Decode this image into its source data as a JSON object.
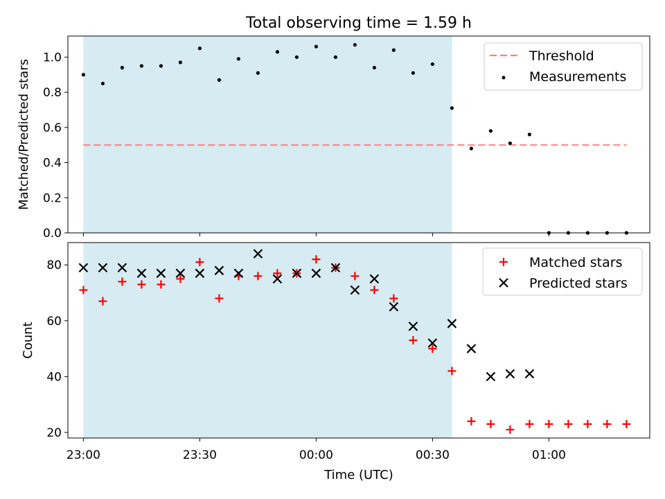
{
  "chart_data": {
    "title": "Total observing time = 1.59 h",
    "xlabel": "Time (UTC)",
    "x_unit": "HH:MM UTC",
    "x_range": [
      "22:56",
      "01:26"
    ],
    "x_ticks": [
      "23:00",
      "23:30",
      "00:00",
      "00:30",
      "01:00"
    ],
    "observing_window": [
      "23:00",
      "00:35"
    ],
    "observing_window_color": "#add8e6",
    "panels": [
      {
        "type": "scatter",
        "ylabel": "Matched/Predicted stars",
        "ylim": [
          0.0,
          1.12
        ],
        "yticks": [
          "0.0",
          "0.2",
          "0.4",
          "0.6",
          "0.8",
          "1.0"
        ],
        "legend_location": "upper right",
        "threshold": {
          "name": "Threshold",
          "value": 0.5,
          "x_range": [
            "23:00",
            "01:20"
          ],
          "color": "#ff7f7f",
          "style": "dashed"
        },
        "series": [
          {
            "name": "Measurements",
            "marker": "dot",
            "color": "#000000",
            "x": [
              "23:00",
              "23:05",
              "23:10",
              "23:15",
              "23:20",
              "23:25",
              "23:30",
              "23:35",
              "23:40",
              "23:45",
              "23:50",
              "23:55",
              "00:00",
              "00:05",
              "00:10",
              "00:15",
              "00:20",
              "00:25",
              "00:30",
              "00:35",
              "00:40",
              "00:45",
              "00:50",
              "00:55",
              "01:00",
              "01:05",
              "01:10",
              "01:15",
              "01:20"
            ],
            "y": [
              0.9,
              0.85,
              0.94,
              0.95,
              0.95,
              0.97,
              1.05,
              0.87,
              0.99,
              0.91,
              1.03,
              1.0,
              1.06,
              1.0,
              1.07,
              0.94,
              1.04,
              0.91,
              0.96,
              0.71,
              0.48,
              0.58,
              0.51,
              0.56,
              0.0,
              0.0,
              0.0,
              0.0,
              0.0
            ]
          }
        ]
      },
      {
        "type": "scatter",
        "ylabel": "Count",
        "ylim": [
          18,
          88
        ],
        "yticks": [
          "20",
          "40",
          "60",
          "80"
        ],
        "legend_location": "upper right",
        "series": [
          {
            "name": "Matched stars",
            "marker": "plus",
            "color": "#ff0000",
            "x": [
              "23:00",
              "23:05",
              "23:10",
              "23:15",
              "23:20",
              "23:25",
              "23:30",
              "23:35",
              "23:40",
              "23:45",
              "23:50",
              "23:55",
              "00:00",
              "00:05",
              "00:10",
              "00:15",
              "00:20",
              "00:25",
              "00:30",
              "00:35",
              "00:40",
              "00:45",
              "00:50",
              "00:55",
              "01:00",
              "01:05",
              "01:10",
              "01:15",
              "01:20"
            ],
            "y": [
              71,
              67,
              74,
              73,
              73,
              75,
              81,
              68,
              76,
              76,
              77,
              77,
              82,
              79,
              76,
              71,
              68,
              53,
              50,
              42,
              24,
              23,
              21,
              23,
              23,
              23,
              23,
              23,
              23
            ]
          },
          {
            "name": "Predicted stars",
            "marker": "x",
            "color": "#000000",
            "x": [
              "23:00",
              "23:05",
              "23:10",
              "23:15",
              "23:20",
              "23:25",
              "23:30",
              "23:35",
              "23:40",
              "23:45",
              "23:50",
              "23:55",
              "00:00",
              "00:05",
              "00:10",
              "00:15",
              "00:20",
              "00:25",
              "00:30",
              "00:35",
              "00:40",
              "00:45",
              "00:50",
              "00:55"
            ],
            "y": [
              79,
              79,
              79,
              77,
              77,
              77,
              77,
              78,
              77,
              84,
              75,
              77,
              77,
              79,
              71,
              75,
              65,
              58,
              52,
              59,
              50,
              40,
              41,
              41
            ]
          }
        ]
      }
    ]
  }
}
